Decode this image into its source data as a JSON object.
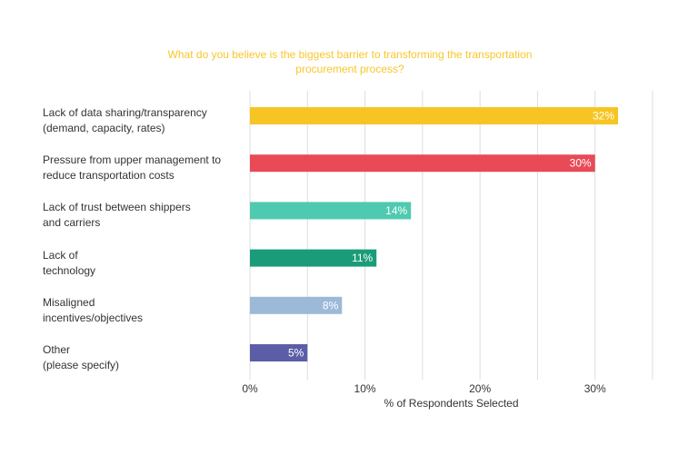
{
  "chart_data": {
    "type": "bar",
    "orientation": "horizontal",
    "title": "What do you believe is the biggest barrier to transforming the transportation procurement process?",
    "xlabel": "% of Respondents Selected",
    "ylabel": "",
    "xlim": [
      0,
      35
    ],
    "grid": true,
    "x_ticks": [
      "0%",
      "10%",
      "20%",
      "30%"
    ],
    "x_tick_values": [
      0,
      10,
      20,
      30
    ],
    "categories": [
      "Lack of data sharing/transparency\n(demand, capacity, rates)",
      "Pressure from upper management to\nreduce transportation costs",
      "Lack of trust between shippers\nand carriers",
      "Lack of\ntechnology",
      "Misaligned\nincentives/objectives",
      "Other\n(please specify)"
    ],
    "values": [
      32,
      30,
      14,
      11,
      8,
      5
    ],
    "value_labels": [
      "32%",
      "30%",
      "14%",
      "11%",
      "8%",
      "5%"
    ],
    "colors": [
      "#f7c523",
      "#e84a57",
      "#4fcab0",
      "#1a9c78",
      "#9db9d8",
      "#5b5ea6"
    ]
  }
}
